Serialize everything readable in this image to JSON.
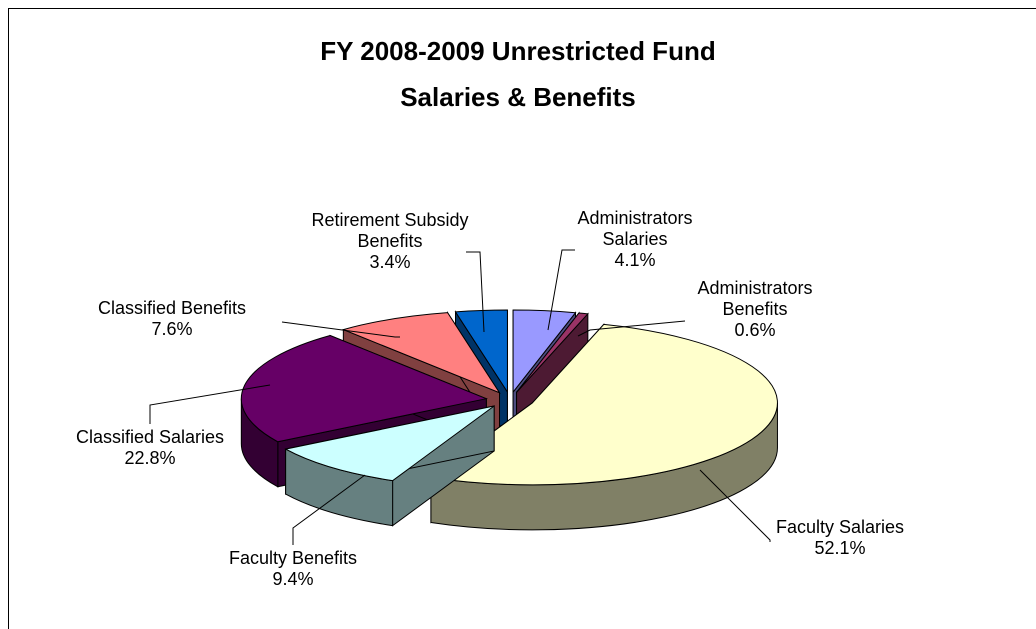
{
  "chart_data": {
    "type": "pie3d",
    "title": "FY 2008-2009 Unrestricted Fund Salaries & Benefits",
    "categories": [
      "Administrators Salaries",
      "Administrators Benefits",
      "Faculty Salaries",
      "Faculty Benefits",
      "Classified Salaries",
      "Classified Benefits",
      "Retirement Subsidy Benefits"
    ],
    "values": [
      4.1,
      0.6,
      52.1,
      9.4,
      22.8,
      7.6,
      3.4
    ],
    "value_labels": [
      "4.1%",
      "0.6%",
      "52.1%",
      "9.4%",
      "22.8%",
      "7.6%",
      "3.4%"
    ],
    "colors": [
      "#9999ff",
      "#993366",
      "#ffffcc",
      "#ccffff",
      "#660066",
      "#ff8080",
      "#0066cc"
    ]
  }
}
